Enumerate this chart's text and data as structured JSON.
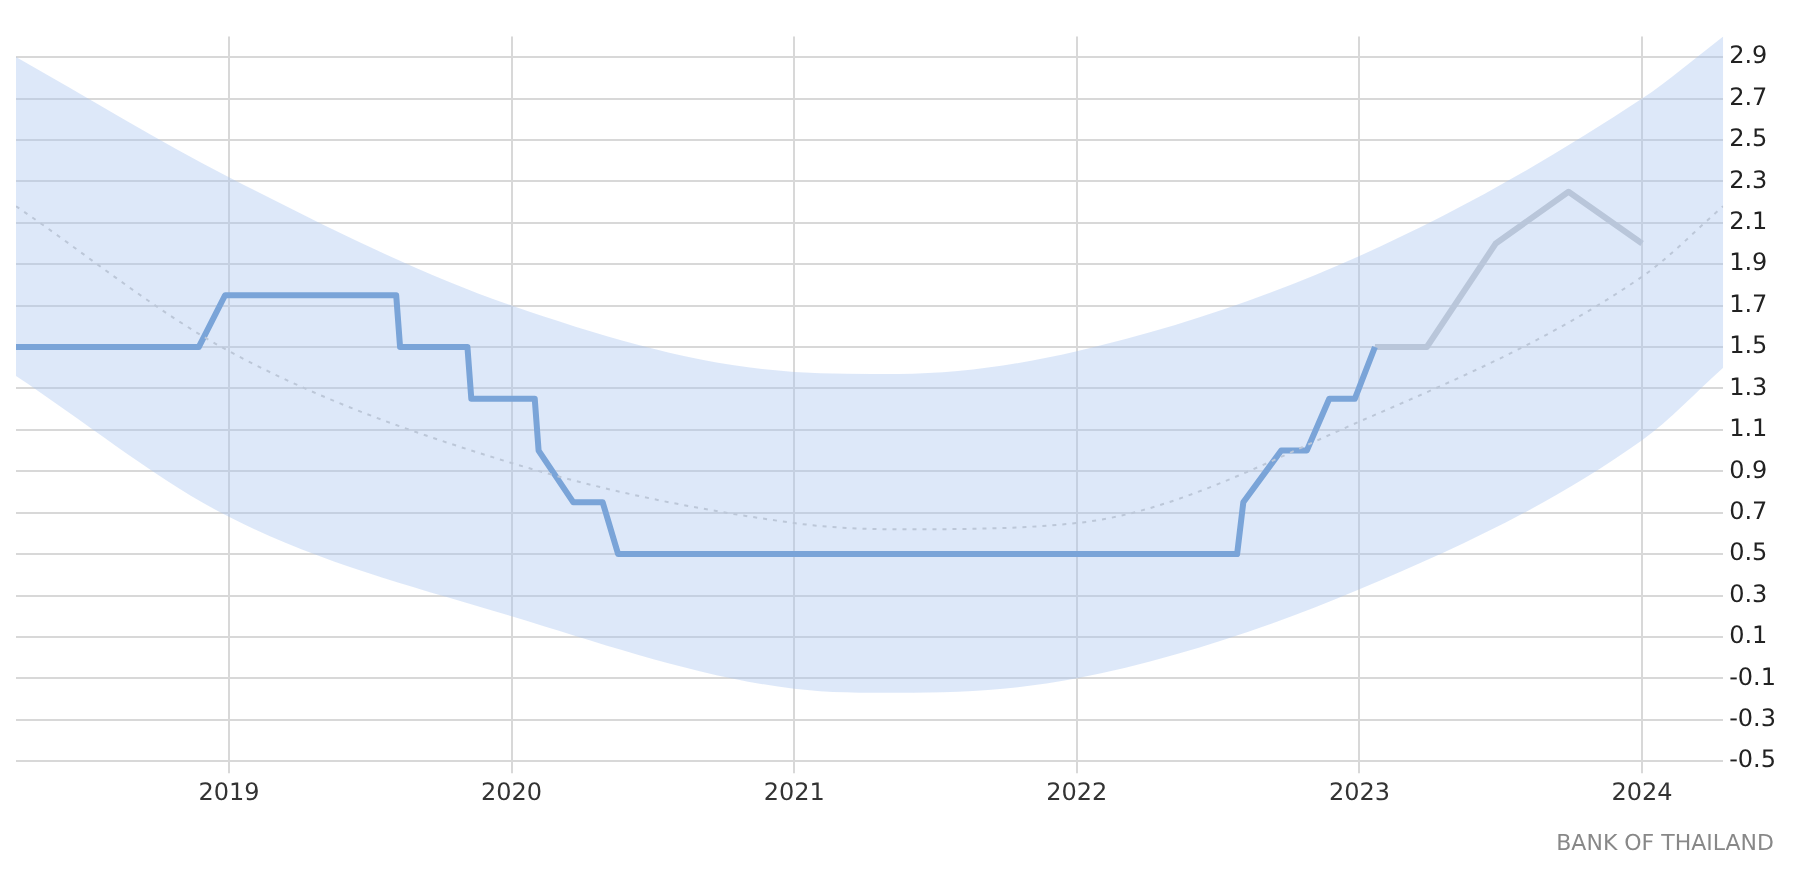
{
  "chart_data": {
    "type": "line",
    "annotations": [
      "BANK OF THAILAND"
    ],
    "xlim": [
      "2018-04-01",
      "2024-04-15"
    ],
    "xticks": [
      "2019",
      "2020",
      "2021",
      "2022",
      "2023",
      "2024"
    ],
    "ylim": [
      -0.5,
      3.0
    ],
    "yticks": [
      -0.5,
      -0.3,
      -0.1,
      0.1,
      0.3,
      0.5,
      0.7,
      0.9,
      1.1,
      1.3,
      1.5,
      1.7,
      1.9,
      2.1,
      2.3,
      2.5,
      2.7,
      2.9
    ],
    "grid": true,
    "legend": false,
    "marker": "none",
    "series": [
      {
        "color": "#c8c8c8",
        "line_style": "dotted",
        "x": [
          "2018-04-01",
          "2019-01-01",
          "2020-01-01",
          "2021-01-01",
          "2021-05-15",
          "2022-01-01",
          "2023-01-01",
          "2024-01-01",
          "2024-04-15"
        ],
        "values": [
          2.18,
          1.48,
          0.94,
          0.65,
          0.62,
          0.65,
          1.14,
          1.84,
          2.18
        ],
        "lower": [
          1.36,
          0.68,
          0.2,
          -0.15,
          -0.17,
          -0.1,
          0.33,
          1.05,
          1.4
        ],
        "upper": [
          2.9,
          2.32,
          1.7,
          1.38,
          1.37,
          1.48,
          1.94,
          2.7,
          3.0
        ]
      },
      {
        "color": "#5b8ec8",
        "line_style": "solid",
        "x": [
          "2018-04-01",
          "2018-11-23",
          "2018-12-27",
          "2019-08-05",
          "2019-08-10",
          "2019-11-05",
          "2019-11-10",
          "2020-01-31",
          "2020-02-05",
          "2020-03-21",
          "2020-04-28",
          "2020-05-18",
          "2022-07-27",
          "2022-08-04",
          "2022-09-22",
          "2022-10-25",
          "2022-11-23",
          "2022-12-26",
          "2023-01-21"
        ],
        "values": [
          1.5,
          1.5,
          1.75,
          1.75,
          1.5,
          1.5,
          1.25,
          1.25,
          1.0,
          0.75,
          0.75,
          0.5,
          0.5,
          0.75,
          1.0,
          1.0,
          1.25,
          1.25,
          1.5
        ]
      },
      {
        "color": "#c3c7cc",
        "line_style": "solid",
        "x": [
          "2023-01-21",
          "2023-03-29",
          "2023-06-26",
          "2023-09-28",
          "2024-01-01"
        ],
        "values": [
          1.5,
          1.5,
          2.0,
          2.25,
          2.0
        ]
      }
    ]
  }
}
